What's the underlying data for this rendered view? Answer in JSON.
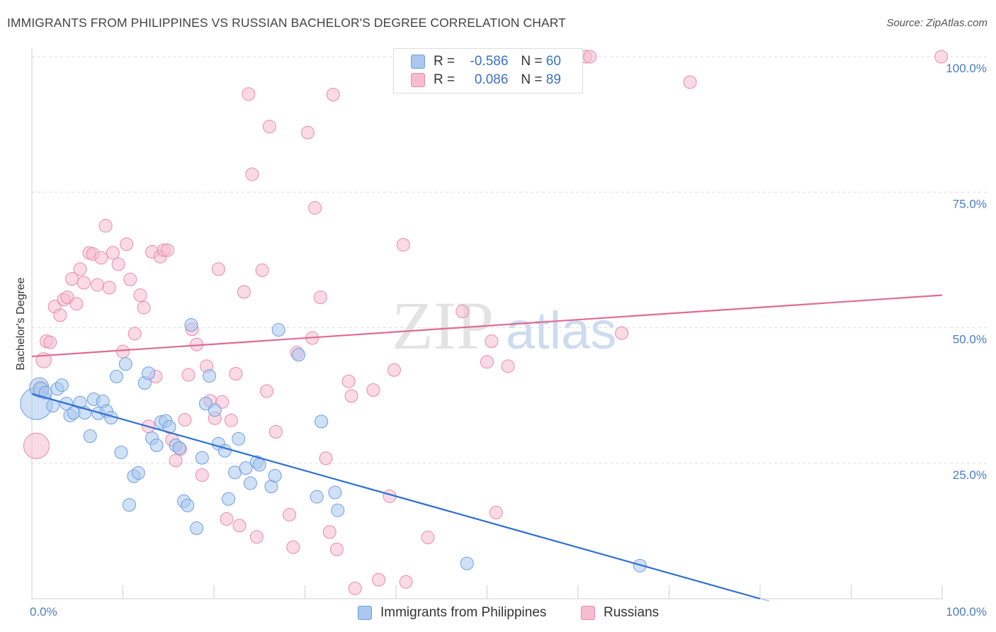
{
  "title": "IMMIGRANTS FROM PHILIPPINES VS RUSSIAN BACHELOR'S DEGREE CORRELATION CHART",
  "source": "Source: ZipAtlas.com",
  "watermark": {
    "zip": "ZIP",
    "atlas": "atlas"
  },
  "legend": {
    "rows": [
      {
        "r_label": "R =",
        "r_value": "-0.586",
        "n_label": "N =",
        "n_value": "60"
      },
      {
        "r_label": "R =",
        "r_value": "0.086",
        "n_label": "N =",
        "n_value": "89"
      }
    ]
  },
  "bottom_legend": {
    "series1": "Immigrants from Philippines",
    "series2": "Russians"
  },
  "colors": {
    "blue_fill": "#aac8ef",
    "blue_stroke": "#6d9ee0",
    "blue_line": "#2d6fd1",
    "pink_fill": "#f6bcd0",
    "pink_stroke": "#e98aab",
    "pink_line": "#e06b93",
    "axis_text": "#4a7cc7"
  },
  "chart_data": {
    "type": "scatter",
    "title": "IMMIGRANTS FROM PHILIPPINES VS RUSSIAN BACHELOR'S DEGREE CORRELATION CHART",
    "xlabel": "",
    "ylabel": "Bachelor's Degree",
    "xlim": [
      0,
      100
    ],
    "ylim": [
      0,
      100
    ],
    "x_tick_labels": [
      "0.0%",
      "100.0%"
    ],
    "y_tick_labels": [
      "25.0%",
      "50.0%",
      "75.0%",
      "100.0%"
    ],
    "y_ticks": [
      25,
      50,
      75,
      100
    ],
    "grid": true,
    "series": [
      {
        "name": "Immigrants from Philippines",
        "r": -0.586,
        "n": 60,
        "trend": {
          "x": [
            0,
            80
          ],
          "y": [
            37.8,
            0
          ]
        },
        "points": [
          [
            0.5,
            36,
            2.5
          ],
          [
            0.8,
            39,
            1.5
          ],
          [
            1,
            38.5,
            1.2
          ],
          [
            1.5,
            38,
            1
          ],
          [
            2.3,
            35.6,
            1
          ],
          [
            2.8,
            38.7,
            1
          ],
          [
            3.3,
            39.4,
            1
          ],
          [
            3.8,
            36,
            1
          ],
          [
            4.2,
            33.8,
            1
          ],
          [
            4.6,
            34.3,
            1
          ],
          [
            5.3,
            36.2,
            1
          ],
          [
            5.8,
            34.3,
            1
          ],
          [
            6.4,
            30,
            1
          ],
          [
            6.8,
            36.8,
            1
          ],
          [
            7.3,
            34.2,
            1
          ],
          [
            7.8,
            36.4,
            1
          ],
          [
            8.2,
            34.6,
            1
          ],
          [
            8.7,
            33.4,
            1
          ],
          [
            9.3,
            41,
            1
          ],
          [
            9.8,
            27,
            1
          ],
          [
            10.3,
            43.3,
            1
          ],
          [
            10.7,
            17.3,
            1
          ],
          [
            11.2,
            22.6,
            1
          ],
          [
            11.7,
            23.2,
            1
          ],
          [
            12.4,
            39.8,
            1
          ],
          [
            12.8,
            41.6,
            1
          ],
          [
            13.2,
            29.6,
            1
          ],
          [
            13.7,
            28.3,
            1
          ],
          [
            14.2,
            32.6,
            1
          ],
          [
            14.7,
            32.8,
            1
          ],
          [
            15.1,
            31.7,
            1
          ],
          [
            15.8,
            28.3,
            1
          ],
          [
            16.2,
            27.8,
            1
          ],
          [
            16.7,
            18,
            1
          ],
          [
            17.1,
            17.2,
            1
          ],
          [
            17.5,
            50.5,
            1
          ],
          [
            18.1,
            13,
            1
          ],
          [
            18.7,
            26,
            1
          ],
          [
            19.1,
            36,
            1
          ],
          [
            19.5,
            41.1,
            1
          ],
          [
            20.1,
            34.8,
            1
          ],
          [
            20.5,
            28.6,
            1
          ],
          [
            21.2,
            27.3,
            1
          ],
          [
            21.6,
            18.4,
            1
          ],
          [
            22.3,
            23.3,
            1
          ],
          [
            22.7,
            29.5,
            1
          ],
          [
            23.5,
            24.1,
            1
          ],
          [
            24,
            21.3,
            1
          ],
          [
            24.7,
            25.2,
            1
          ],
          [
            25,
            24.7,
            1
          ],
          [
            26.3,
            20.7,
            1
          ],
          [
            26.7,
            22.7,
            1
          ],
          [
            27.1,
            49.6,
            1
          ],
          [
            29.3,
            45,
            1
          ],
          [
            31.3,
            18.8,
            1
          ],
          [
            31.8,
            32.7,
            1
          ],
          [
            33.3,
            19.6,
            1
          ],
          [
            33.6,
            16.3,
            1
          ],
          [
            47.8,
            6.5,
            1
          ],
          [
            66.8,
            6.1,
            1
          ]
        ]
      },
      {
        "name": "Russians",
        "r": 0.086,
        "n": 89,
        "trend": {
          "x": [
            0,
            100
          ],
          "y": [
            44.7,
            56
          ]
        },
        "points": [
          [
            0.5,
            28.2,
            2
          ],
          [
            0.9,
            39,
            1
          ],
          [
            1.3,
            44,
            1.2
          ],
          [
            1.6,
            47.5,
            1
          ],
          [
            2,
            47.3,
            1
          ],
          [
            2.5,
            53.9,
            1
          ],
          [
            3.1,
            52.3,
            1
          ],
          [
            3.5,
            55.2,
            1
          ],
          [
            3.9,
            55.6,
            1
          ],
          [
            4.4,
            59,
            1
          ],
          [
            4.9,
            54.4,
            1
          ],
          [
            5.3,
            60.8,
            1
          ],
          [
            5.7,
            58.3,
            1
          ],
          [
            6.3,
            63.8,
            1
          ],
          [
            6.7,
            63.6,
            1
          ],
          [
            7.2,
            57.9,
            1
          ],
          [
            7.6,
            62.9,
            1
          ],
          [
            8.1,
            68.8,
            1
          ],
          [
            8.5,
            57.4,
            1
          ],
          [
            8.9,
            63.8,
            1
          ],
          [
            9.5,
            61.7,
            1
          ],
          [
            10,
            45.6,
            1
          ],
          [
            10.4,
            65.4,
            1
          ],
          [
            10.8,
            58.9,
            1
          ],
          [
            11.3,
            48.9,
            1
          ],
          [
            11.9,
            56,
            1
          ],
          [
            12.3,
            53.7,
            1
          ],
          [
            12.8,
            31.8,
            1
          ],
          [
            13.2,
            64,
            1
          ],
          [
            13.6,
            41,
            1
          ],
          [
            14.1,
            63.1,
            1
          ],
          [
            14.5,
            64.3,
            1
          ],
          [
            14.9,
            64.3,
            1
          ],
          [
            15.4,
            29.3,
            1
          ],
          [
            15.8,
            25.5,
            1
          ],
          [
            16.3,
            27.6,
            1
          ],
          [
            16.8,
            33,
            1
          ],
          [
            17.2,
            41.3,
            1
          ],
          [
            17.6,
            49.7,
            1
          ],
          [
            18.1,
            46.9,
            1
          ],
          [
            18.7,
            22.8,
            1
          ],
          [
            19.2,
            42.9,
            1
          ],
          [
            19.6,
            36.5,
            1
          ],
          [
            20.1,
            33.3,
            1
          ],
          [
            20.5,
            60.8,
            1
          ],
          [
            20.9,
            36.3,
            1
          ],
          [
            21.4,
            14.7,
            1
          ],
          [
            21.9,
            32.9,
            1
          ],
          [
            22.4,
            41.5,
            1
          ],
          [
            22.8,
            13.5,
            1
          ],
          [
            23.3,
            56.6,
            1
          ],
          [
            23.8,
            93.1,
            1
          ],
          [
            24.2,
            78.3,
            1
          ],
          [
            24.7,
            11.4,
            1
          ],
          [
            25.3,
            60.6,
            1
          ],
          [
            25.8,
            38.3,
            1
          ],
          [
            26.1,
            87.1,
            1
          ],
          [
            26.8,
            30.8,
            1
          ],
          [
            28.3,
            15.5,
            1
          ],
          [
            28.7,
            9.5,
            1
          ],
          [
            29.1,
            45.4,
            1
          ],
          [
            30.3,
            86,
            1
          ],
          [
            30.8,
            48.1,
            1
          ],
          [
            31.1,
            72.1,
            1
          ],
          [
            31.7,
            55.6,
            1
          ],
          [
            32.3,
            25.9,
            1
          ],
          [
            32.7,
            12.3,
            1
          ],
          [
            33.1,
            93,
            1
          ],
          [
            33.5,
            9.1,
            1
          ],
          [
            34.8,
            40.1,
            1
          ],
          [
            35.1,
            37.4,
            1
          ],
          [
            35.5,
            1.9,
            1
          ],
          [
            37.5,
            38.5,
            1
          ],
          [
            38.1,
            3.5,
            1
          ],
          [
            39.3,
            18.9,
            1
          ],
          [
            39.8,
            42.2,
            1
          ],
          [
            40.8,
            65.3,
            1
          ],
          [
            41.1,
            3.1,
            1
          ],
          [
            43.5,
            11.3,
            1
          ],
          [
            47.3,
            53,
            1
          ],
          [
            50,
            43.7,
            1
          ],
          [
            50.5,
            47.5,
            1
          ],
          [
            51,
            15.9,
            1
          ],
          [
            52.3,
            42.9,
            1
          ],
          [
            60.8,
            100,
            1
          ],
          [
            61.3,
            100,
            1
          ],
          [
            64.8,
            49,
            1
          ],
          [
            72.3,
            95.3,
            1
          ],
          [
            99.9,
            100,
            1
          ]
        ]
      }
    ]
  }
}
